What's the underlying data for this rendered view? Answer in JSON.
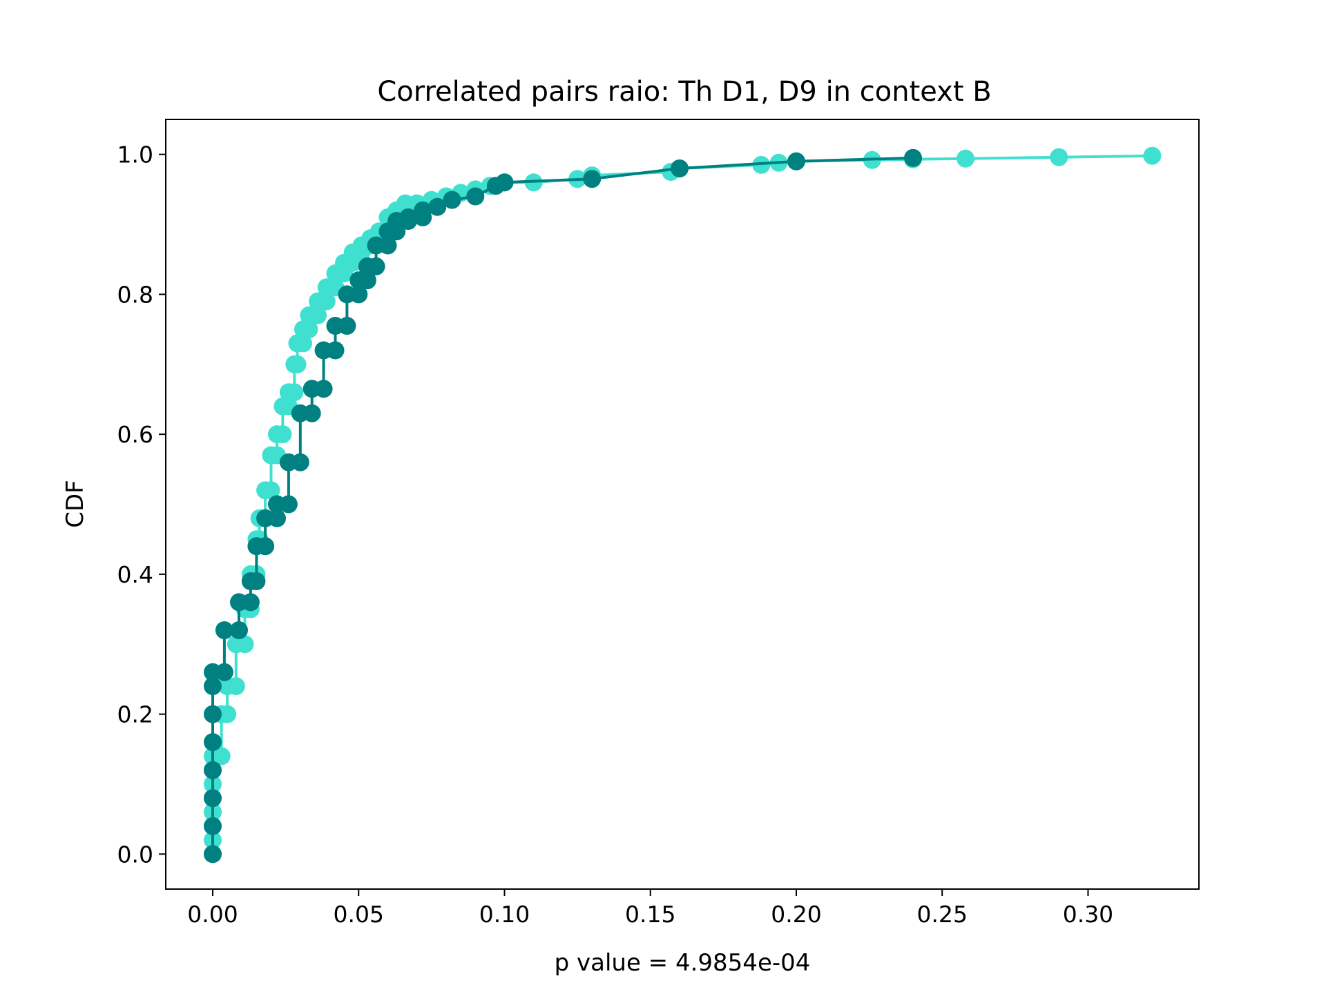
{
  "chart_data": {
    "type": "line",
    "title": "Correlated pairs raio: Th D1, D9 in context B",
    "xlabel": "p value = 4.9854e-04",
    "ylabel": "CDF",
    "xlim": [
      -0.0161,
      0.338
    ],
    "ylim": [
      -0.05,
      1.05
    ],
    "xticks": [
      0.0,
      0.05,
      0.1,
      0.15,
      0.2,
      0.25,
      0.3
    ],
    "xtick_labels": [
      "0.00",
      "0.05",
      "0.10",
      "0.15",
      "0.20",
      "0.25",
      "0.30"
    ],
    "yticks": [
      0.0,
      0.2,
      0.4,
      0.6,
      0.8,
      1.0
    ],
    "ytick_labels": [
      "0.0",
      "0.2",
      "0.4",
      "0.6",
      "0.8",
      "1.0"
    ],
    "grid": false,
    "colors": {
      "series_light": "#40e0d0",
      "series_dark": "#008080"
    },
    "series": [
      {
        "color": "#40e0d0",
        "x": [
          0.0,
          0.0,
          0.0,
          0.0,
          0.0,
          0.0,
          0.0,
          0.0,
          0.003,
          0.003,
          0.005,
          0.005,
          0.008,
          0.008,
          0.011,
          0.011,
          0.013,
          0.013,
          0.015,
          0.015,
          0.016,
          0.016,
          0.018,
          0.018,
          0.02,
          0.02,
          0.022,
          0.022,
          0.024,
          0.024,
          0.026,
          0.026,
          0.028,
          0.028,
          0.029,
          0.029,
          0.031,
          0.031,
          0.033,
          0.033,
          0.036,
          0.036,
          0.039,
          0.039,
          0.042,
          0.042,
          0.045,
          0.045,
          0.048,
          0.048,
          0.051,
          0.051,
          0.054,
          0.054,
          0.057,
          0.057,
          0.06,
          0.06,
          0.063,
          0.063,
          0.066,
          0.066,
          0.07,
          0.075,
          0.08,
          0.085,
          0.09,
          0.095,
          0.1,
          0.11,
          0.125,
          0.13,
          0.157,
          0.16,
          0.188,
          0.194,
          0.2,
          0.226,
          0.24,
          0.258,
          0.29,
          0.322
        ],
        "y": [
          0.0,
          0.02,
          0.04,
          0.06,
          0.08,
          0.1,
          0.12,
          0.14,
          0.14,
          0.2,
          0.2,
          0.24,
          0.24,
          0.3,
          0.3,
          0.35,
          0.35,
          0.4,
          0.4,
          0.45,
          0.45,
          0.48,
          0.48,
          0.52,
          0.52,
          0.57,
          0.57,
          0.6,
          0.6,
          0.64,
          0.64,
          0.66,
          0.66,
          0.7,
          0.7,
          0.73,
          0.73,
          0.75,
          0.75,
          0.77,
          0.77,
          0.79,
          0.79,
          0.81,
          0.81,
          0.83,
          0.83,
          0.845,
          0.845,
          0.86,
          0.86,
          0.87,
          0.87,
          0.88,
          0.88,
          0.89,
          0.89,
          0.91,
          0.91,
          0.92,
          0.92,
          0.93,
          0.93,
          0.935,
          0.94,
          0.945,
          0.95,
          0.955,
          0.96,
          0.96,
          0.965,
          0.97,
          0.975,
          0.98,
          0.985,
          0.988,
          0.99,
          0.992,
          0.993,
          0.994,
          0.996,
          0.998
        ]
      },
      {
        "color": "#008080",
        "x": [
          0.0,
          0.0,
          0.0,
          0.0,
          0.0,
          0.0,
          0.0,
          0.0,
          0.004,
          0.004,
          0.009,
          0.009,
          0.013,
          0.013,
          0.015,
          0.015,
          0.018,
          0.018,
          0.022,
          0.022,
          0.026,
          0.026,
          0.03,
          0.03,
          0.034,
          0.034,
          0.038,
          0.038,
          0.042,
          0.042,
          0.046,
          0.046,
          0.05,
          0.05,
          0.053,
          0.053,
          0.056,
          0.056,
          0.06,
          0.06,
          0.063,
          0.063,
          0.067,
          0.067,
          0.072,
          0.072,
          0.077,
          0.082,
          0.09,
          0.097,
          0.1,
          0.13,
          0.16,
          0.2,
          0.24
        ],
        "y": [
          0.0,
          0.04,
          0.08,
          0.12,
          0.16,
          0.2,
          0.24,
          0.26,
          0.26,
          0.32,
          0.32,
          0.36,
          0.36,
          0.39,
          0.39,
          0.44,
          0.44,
          0.48,
          0.48,
          0.5,
          0.5,
          0.56,
          0.56,
          0.63,
          0.63,
          0.665,
          0.665,
          0.72,
          0.72,
          0.755,
          0.755,
          0.8,
          0.8,
          0.82,
          0.82,
          0.84,
          0.84,
          0.87,
          0.87,
          0.89,
          0.89,
          0.905,
          0.905,
          0.91,
          0.91,
          0.92,
          0.925,
          0.935,
          0.94,
          0.955,
          0.96,
          0.965,
          0.98,
          0.99,
          0.995
        ]
      }
    ]
  }
}
